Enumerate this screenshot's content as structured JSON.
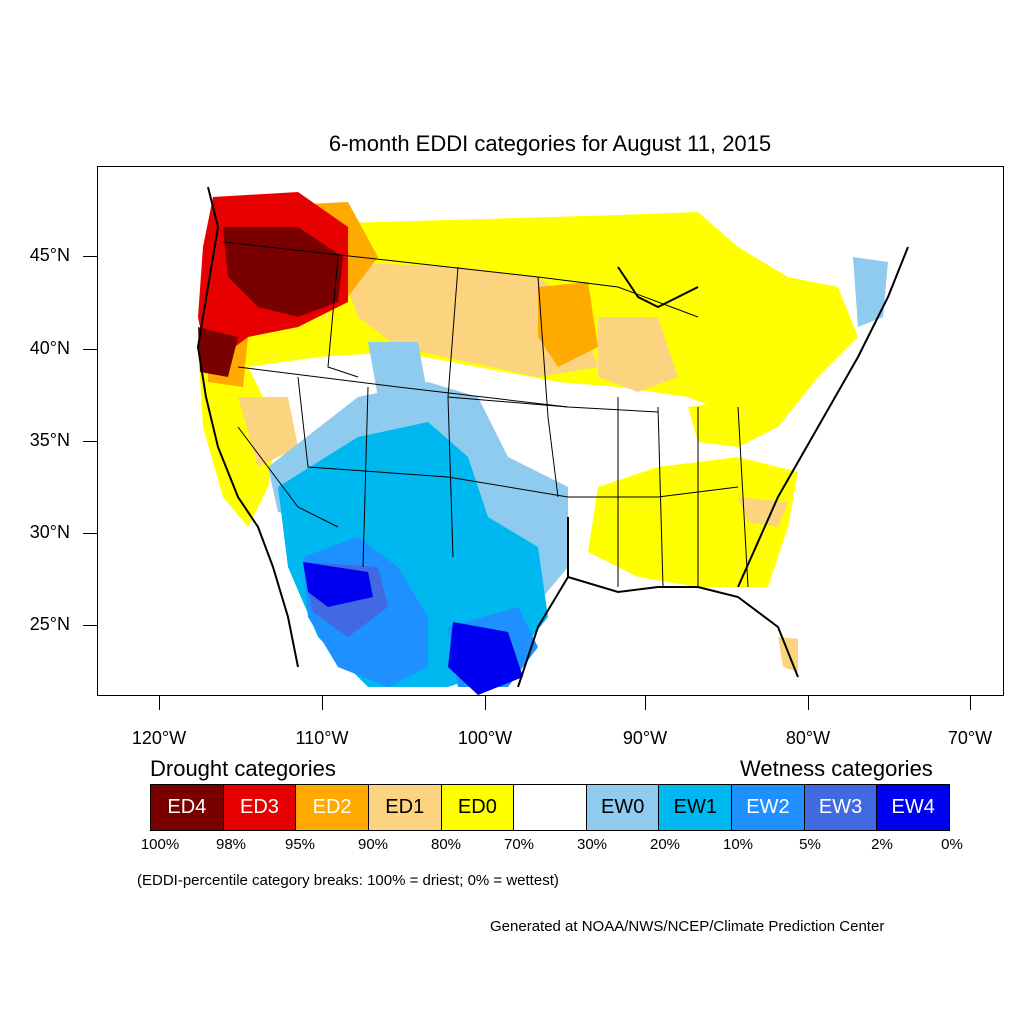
{
  "title": "6-month EDDI categories for August 11, 2015",
  "axes": {
    "lat_labels": [
      "45°N",
      "40°N",
      "35°N",
      "30°N",
      "25°N"
    ],
    "lon_labels": [
      "120°W",
      "110°W",
      "100°W",
      "90°W",
      "80°W",
      "70°W"
    ]
  },
  "legend": {
    "drought_heading": "Drought categories",
    "wetness_heading": "Wetness categories",
    "categories": [
      {
        "label": "ED4",
        "color": "#7a0000",
        "text_color": "#ffffff"
      },
      {
        "label": "ED3",
        "color": "#e60000",
        "text_color": "#ffffff"
      },
      {
        "label": "ED2",
        "color": "#ffaa00",
        "text_color": "#ffffff"
      },
      {
        "label": "ED1",
        "color": "#fcd37f",
        "text_color": "#000000"
      },
      {
        "label": "ED0",
        "color": "#ffff00",
        "text_color": "#000000"
      },
      {
        "label": "",
        "color": "#ffffff",
        "text_color": "#000000"
      },
      {
        "label": "EW0",
        "color": "#8ecbef",
        "text_color": "#000000"
      },
      {
        "label": "EW1",
        "color": "#00b8f0",
        "text_color": "#000000"
      },
      {
        "label": "EW2",
        "color": "#1e90ff",
        "text_color": "#ffffff"
      },
      {
        "label": "EW3",
        "color": "#4169e1",
        "text_color": "#ffffff"
      },
      {
        "label": "EW4",
        "color": "#0000f0",
        "text_color": "#ffffff"
      }
    ],
    "percentiles": [
      "100%",
      "98%",
      "95%",
      "90%",
      "80%",
      "70%",
      "30%",
      "20%",
      "10%",
      "5%",
      "2%",
      "0%"
    ]
  },
  "note": "(EDDI-percentile category breaks: 100% = driest; 0% = wettest)",
  "credit": "Generated at NOAA/NWS/NCEP/Climate Prediction Center"
}
